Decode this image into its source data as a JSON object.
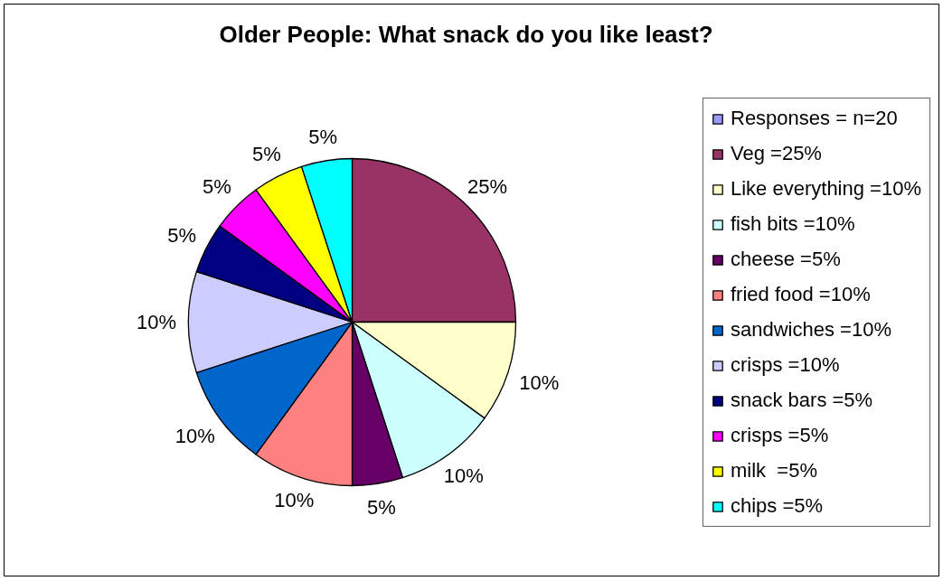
{
  "chart_data": {
    "type": "pie",
    "title": "Older People: What snack do you like least?",
    "categories": [
      "Responses = n=20",
      "Veg =25%",
      "Like everything =10%",
      "fish bits =10%",
      "cheese =5%",
      "fried food =10%",
      "sandwiches =10%",
      "crisps =10%",
      "snack bars =5%",
      "crisps =5%",
      "milk  =5%",
      "chips =5%"
    ],
    "values": [
      0,
      25,
      10,
      10,
      5,
      10,
      10,
      10,
      5,
      5,
      5,
      5
    ],
    "colors": [
      "#9999ff",
      "#993366",
      "#ffffcc",
      "#ccffff",
      "#660066",
      "#ff8080",
      "#0066cc",
      "#ccccff",
      "#000080",
      "#ff00ff",
      "#ffff00",
      "#00ffff"
    ],
    "value_labels": [
      null,
      "25%",
      "10%",
      "10%",
      "5%",
      "10%",
      "10%",
      "10%",
      "5%",
      "5%",
      "5%",
      "5%"
    ],
    "legend": "right"
  }
}
